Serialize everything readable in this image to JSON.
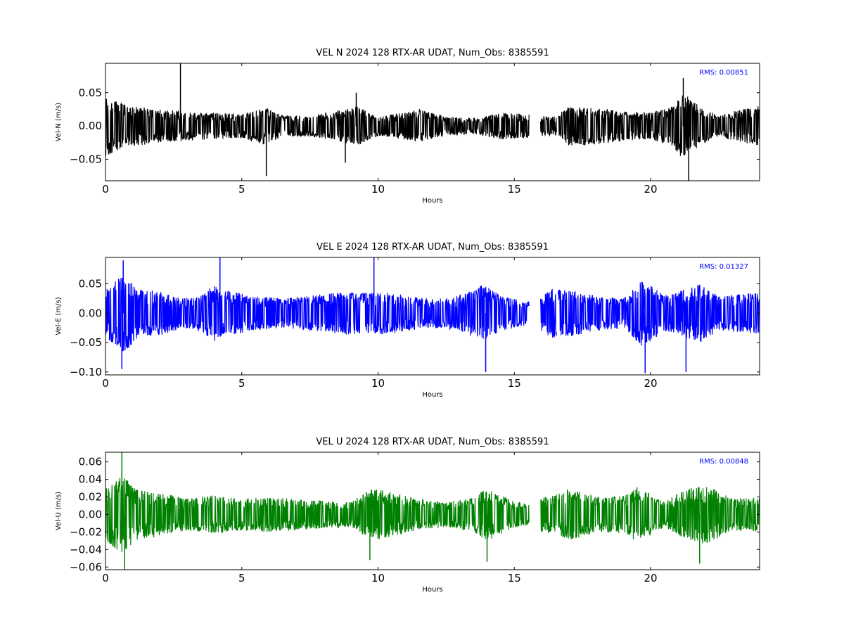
{
  "chart_data": [
    {
      "type": "line",
      "title": "VEL N 2024 128 RTX-AR  UDAT, Num_Obs: 8385591",
      "xlabel": "Hours",
      "ylabel": "Vel-N (m/s)",
      "xlim": [
        0,
        24
      ],
      "ylim": [
        -0.082,
        0.094
      ],
      "x_ticks": [
        0,
        5,
        10,
        15,
        20
      ],
      "y_ticks": [
        -0.05,
        0.0,
        0.05
      ],
      "y_tick_labels": [
        "−0.05",
        "0.00",
        "0.05"
      ],
      "color": "#000000",
      "rms_label": "RMS:  0.00851",
      "rms_color": "#0000ff",
      "data_gaps_hours": [
        [
          15.55,
          15.95
        ],
        [
          16.55,
          16.6
        ]
      ],
      "envelope": [
        {
          "x": 0.0,
          "amp": 0.045
        },
        {
          "x": 0.5,
          "amp": 0.035
        },
        {
          "x": 1.0,
          "amp": 0.03
        },
        {
          "x": 2.0,
          "amp": 0.025
        },
        {
          "x": 3.0,
          "amp": 0.022
        },
        {
          "x": 4.0,
          "amp": 0.02
        },
        {
          "x": 5.0,
          "amp": 0.018
        },
        {
          "x": 5.8,
          "amp": 0.028
        },
        {
          "x": 6.5,
          "amp": 0.016
        },
        {
          "x": 7.5,
          "amp": 0.016
        },
        {
          "x": 8.5,
          "amp": 0.022
        },
        {
          "x": 9.2,
          "amp": 0.03
        },
        {
          "x": 10.0,
          "amp": 0.015
        },
        {
          "x": 11.0,
          "amp": 0.02
        },
        {
          "x": 11.5,
          "amp": 0.025
        },
        {
          "x": 12.5,
          "amp": 0.014
        },
        {
          "x": 13.5,
          "amp": 0.012
        },
        {
          "x": 14.5,
          "amp": 0.02
        },
        {
          "x": 15.5,
          "amp": 0.018
        },
        {
          "x": 16.0,
          "amp": 0.015
        },
        {
          "x": 16.5,
          "amp": 0.015
        },
        {
          "x": 17.0,
          "amp": 0.03
        },
        {
          "x": 18.0,
          "amp": 0.028
        },
        {
          "x": 19.0,
          "amp": 0.022
        },
        {
          "x": 20.0,
          "amp": 0.02
        },
        {
          "x": 20.8,
          "amp": 0.03
        },
        {
          "x": 21.2,
          "amp": 0.05
        },
        {
          "x": 21.8,
          "amp": 0.03
        },
        {
          "x": 22.5,
          "amp": 0.015
        },
        {
          "x": 23.0,
          "amp": 0.022
        },
        {
          "x": 24.0,
          "amp": 0.03
        }
      ],
      "spikes": [
        {
          "x": 2.75,
          "y": 0.094
        },
        {
          "x": 5.9,
          "y": -0.075
        },
        {
          "x": 21.4,
          "y": -0.082
        },
        {
          "x": 21.2,
          "y": 0.072
        },
        {
          "x": 9.2,
          "y": 0.05
        },
        {
          "x": 8.8,
          "y": -0.055
        }
      ]
    },
    {
      "type": "line",
      "title": "VEL E 2024 128 RTX-AR  UDAT, Num_Obs: 8385591",
      "xlabel": "Hours",
      "ylabel": "Vel-E (m/s)",
      "xlim": [
        0,
        24
      ],
      "ylim": [
        -0.105,
        0.095
      ],
      "x_ticks": [
        0,
        5,
        10,
        15,
        20
      ],
      "y_ticks": [
        -0.1,
        -0.05,
        0.0,
        0.05
      ],
      "y_tick_labels": [
        "−0.10",
        "−0.05",
        "0.00",
        "0.05"
      ],
      "color": "#0000ff",
      "rms_label": "RMS:  0.01327",
      "rms_color": "#0000ff",
      "data_gaps_hours": [
        [
          15.55,
          15.95
        ],
        [
          16.55,
          16.6
        ]
      ],
      "envelope": [
        {
          "x": 0.0,
          "amp": 0.04
        },
        {
          "x": 0.7,
          "amp": 0.07
        },
        {
          "x": 1.2,
          "amp": 0.04
        },
        {
          "x": 2.0,
          "amp": 0.038
        },
        {
          "x": 2.8,
          "amp": 0.025
        },
        {
          "x": 3.5,
          "amp": 0.03
        },
        {
          "x": 4.0,
          "amp": 0.05
        },
        {
          "x": 4.5,
          "amp": 0.038
        },
        {
          "x": 5.5,
          "amp": 0.03
        },
        {
          "x": 6.5,
          "amp": 0.025
        },
        {
          "x": 7.5,
          "amp": 0.03
        },
        {
          "x": 8.5,
          "amp": 0.035
        },
        {
          "x": 9.5,
          "amp": 0.035
        },
        {
          "x": 10.5,
          "amp": 0.035
        },
        {
          "x": 11.0,
          "amp": 0.03
        },
        {
          "x": 12.0,
          "amp": 0.025
        },
        {
          "x": 13.0,
          "amp": 0.03
        },
        {
          "x": 13.9,
          "amp": 0.05
        },
        {
          "x": 14.5,
          "amp": 0.03
        },
        {
          "x": 15.5,
          "amp": 0.02
        },
        {
          "x": 16.0,
          "amp": 0.03
        },
        {
          "x": 16.5,
          "amp": 0.045
        },
        {
          "x": 17.0,
          "amp": 0.04
        },
        {
          "x": 18.0,
          "amp": 0.03
        },
        {
          "x": 19.0,
          "amp": 0.025
        },
        {
          "x": 19.7,
          "amp": 0.06
        },
        {
          "x": 20.5,
          "amp": 0.03
        },
        {
          "x": 21.2,
          "amp": 0.04
        },
        {
          "x": 21.8,
          "amp": 0.05
        },
        {
          "x": 22.5,
          "amp": 0.03
        },
        {
          "x": 24.0,
          "amp": 0.035
        }
      ],
      "spikes": [
        {
          "x": 9.85,
          "y": 0.095
        },
        {
          "x": 4.2,
          "y": 0.095
        },
        {
          "x": 13.95,
          "y": -0.1
        },
        {
          "x": 19.8,
          "y": -0.102
        },
        {
          "x": 21.3,
          "y": -0.1
        },
        {
          "x": 0.65,
          "y": 0.09
        },
        {
          "x": 0.6,
          "y": -0.095
        }
      ]
    },
    {
      "type": "line",
      "title": "VEL U 2024 128 RTX-AR  UDAT, Num_Obs: 8385591",
      "xlabel": "Hours",
      "ylabel": "Vel-U (m/s)",
      "xlim": [
        0,
        24
      ],
      "ylim": [
        -0.063,
        0.071
      ],
      "x_ticks": [
        0,
        5,
        10,
        15,
        20
      ],
      "y_ticks": [
        -0.06,
        -0.04,
        -0.02,
        0.0,
        0.02,
        0.04,
        0.06
      ],
      "y_tick_labels": [
        "−0.06",
        "−0.04",
        "−0.02",
        "0.00",
        "0.02",
        "0.04",
        "0.06"
      ],
      "color": "#008000",
      "rms_label": "RMS:  0.00848",
      "rms_color": "#0000ff",
      "data_gaps_hours": [
        [
          15.55,
          15.95
        ],
        [
          16.55,
          16.6
        ]
      ],
      "envelope": [
        {
          "x": 0.0,
          "amp": 0.03
        },
        {
          "x": 0.6,
          "amp": 0.045
        },
        {
          "x": 1.2,
          "amp": 0.028
        },
        {
          "x": 2.0,
          "amp": 0.025
        },
        {
          "x": 3.0,
          "amp": 0.018
        },
        {
          "x": 4.0,
          "amp": 0.022
        },
        {
          "x": 5.0,
          "amp": 0.018
        },
        {
          "x": 6.0,
          "amp": 0.02
        },
        {
          "x": 7.0,
          "amp": 0.018
        },
        {
          "x": 8.0,
          "amp": 0.016
        },
        {
          "x": 9.0,
          "amp": 0.014
        },
        {
          "x": 9.8,
          "amp": 0.03
        },
        {
          "x": 10.5,
          "amp": 0.025
        },
        {
          "x": 11.5,
          "amp": 0.018
        },
        {
          "x": 12.5,
          "amp": 0.014
        },
        {
          "x": 13.5,
          "amp": 0.02
        },
        {
          "x": 14.0,
          "amp": 0.03
        },
        {
          "x": 15.0,
          "amp": 0.015
        },
        {
          "x": 15.5,
          "amp": 0.012
        },
        {
          "x": 16.0,
          "amp": 0.02
        },
        {
          "x": 16.5,
          "amp": 0.022
        },
        {
          "x": 17.0,
          "amp": 0.03
        },
        {
          "x": 18.0,
          "amp": 0.02
        },
        {
          "x": 19.0,
          "amp": 0.022
        },
        {
          "x": 19.5,
          "amp": 0.032
        },
        {
          "x": 20.5,
          "amp": 0.015
        },
        {
          "x": 21.2,
          "amp": 0.028
        },
        {
          "x": 22.0,
          "amp": 0.035
        },
        {
          "x": 23.0,
          "amp": 0.018
        },
        {
          "x": 24.0,
          "amp": 0.02
        }
      ],
      "spikes": [
        {
          "x": 0.6,
          "y": 0.071
        },
        {
          "x": 0.7,
          "y": -0.063
        },
        {
          "x": 9.7,
          "y": -0.052
        },
        {
          "x": 14.0,
          "y": -0.054
        },
        {
          "x": 21.8,
          "y": -0.056
        }
      ]
    }
  ]
}
